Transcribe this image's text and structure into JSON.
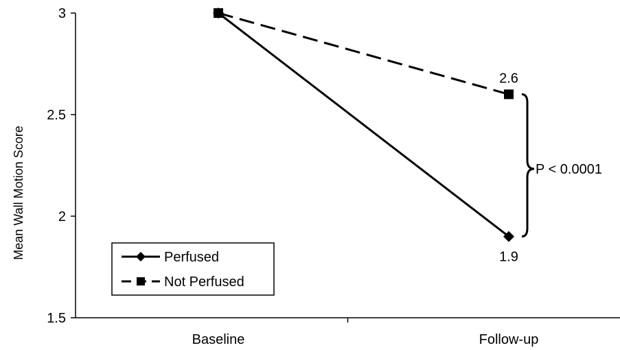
{
  "chart_data": {
    "type": "line",
    "title": "",
    "xlabel": "",
    "ylabel": "Mean Wall Motion Score",
    "categories": [
      "Baseline",
      "Follow-up"
    ],
    "y_ticks": [
      "3",
      "2.5",
      "2",
      "1.5"
    ],
    "ylim": [
      1.5,
      3
    ],
    "grid": false,
    "legend_position": "bottom-left",
    "series": [
      {
        "name": "Perfused",
        "values": [
          3,
          1.9
        ],
        "line_style": "solid",
        "marker": "diamond",
        "color": "#000000"
      },
      {
        "name": "Not Perfused",
        "values": [
          3,
          2.6
        ],
        "line_style": "dashed",
        "marker": "square",
        "color": "#000000"
      }
    ],
    "data_labels": [
      {
        "series": "Not Perfused",
        "category": "Follow-up",
        "text": "2.6",
        "value": 2.6
      },
      {
        "series": "Perfused",
        "category": "Follow-up",
        "text": "1.9",
        "value": 1.9
      }
    ],
    "annotations": [
      {
        "text": "P < 0.0001",
        "type": "bracket",
        "between": [
          1.9,
          2.6
        ]
      }
    ]
  }
}
